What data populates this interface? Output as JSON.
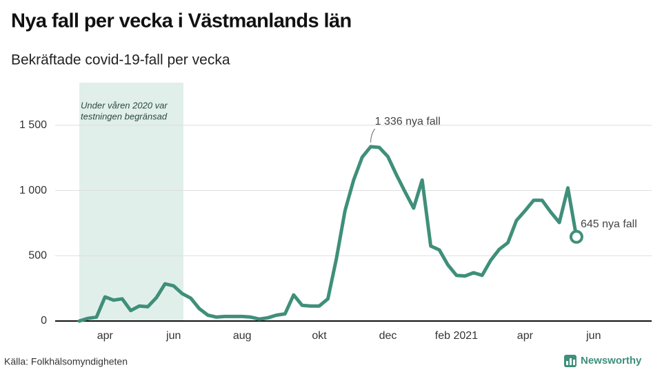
{
  "chart_data": {
    "type": "line",
    "title": "Nya fall per vecka i Västmanlands län",
    "subtitle": "Bekräftade covid-19-fall per vecka",
    "categories": [
      null,
      null,
      null,
      "apr",
      null,
      null,
      null,
      null,
      null,
      null,
      null,
      "jun",
      null,
      null,
      null,
      null,
      null,
      null,
      null,
      "aug",
      null,
      null,
      null,
      null,
      null,
      null,
      null,
      null,
      "okt",
      null,
      null,
      null,
      null,
      null,
      null,
      null,
      "dec",
      null,
      null,
      null,
      null,
      null,
      null,
      null,
      "feb 2021",
      null,
      null,
      null,
      null,
      null,
      null,
      null,
      "apr",
      null,
      null,
      null,
      null,
      null,
      null,
      null,
      "jun"
    ],
    "values": [
      0,
      20,
      30,
      185,
      160,
      170,
      80,
      115,
      110,
      180,
      285,
      270,
      210,
      175,
      95,
      45,
      30,
      35,
      35,
      35,
      30,
      15,
      25,
      45,
      55,
      200,
      120,
      115,
      115,
      170,
      480,
      845,
      1080,
      1255,
      1336,
      1330,
      1260,
      1120,
      990,
      865,
      1080,
      575,
      545,
      430,
      350,
      345,
      370,
      350,
      465,
      550,
      600,
      770,
      845,
      925,
      925,
      835,
      755,
      1020,
      645,
      null,
      null
    ],
    "color": "#3f8f7a",
    "ylim": [
      0,
      1800
    ],
    "yticks": [
      0,
      500,
      {
        "value": 1000,
        "label": "1 000"
      },
      {
        "value": 1500,
        "label": "1 500"
      }
    ],
    "grid": true,
    "annotations": [
      {
        "text": "1 336 nya fall"
      },
      {
        "text": "645 nya fall"
      }
    ],
    "shade_note": [
      "Under våren 2020 var",
      "testningen begränsad"
    ],
    "source": "Källa: Folkhälsomyndigheten",
    "logo": "Newsworthy"
  }
}
